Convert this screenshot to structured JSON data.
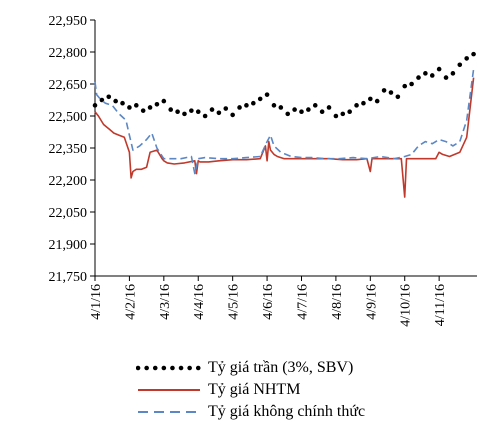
{
  "chart_data": {
    "type": "line",
    "y_ticks": [
      "22,950",
      "22,800",
      "22,650",
      "22,500",
      "22,350",
      "22,200",
      "22,050",
      "21,900",
      "21,750"
    ],
    "x_ticks": [
      "4/1/16",
      "4/2/16",
      "4/3/16",
      "4/4/16",
      "4/5/16",
      "4/6/16",
      "4/7/16",
      "4/8/16",
      "4/9/16",
      "4/10/16",
      "4/11/16"
    ],
    "ylim": [
      21750,
      22950
    ],
    "xlim": [
      0,
      11.1
    ],
    "legend_position": "bottom",
    "series": [
      {
        "name": "Tỷ giá trần (3%, SBV)",
        "style": "dotted",
        "color": "#000000",
        "x": [
          0,
          0.2,
          0.4,
          0.6,
          0.8,
          1.0,
          1.2,
          1.4,
          1.6,
          1.8,
          2.0,
          2.2,
          2.4,
          2.6,
          2.8,
          3.0,
          3.2,
          3.4,
          3.6,
          3.8,
          4.0,
          4.2,
          4.4,
          4.6,
          4.8,
          5.0,
          5.2,
          5.4,
          5.6,
          5.8,
          6.0,
          6.2,
          6.4,
          6.6,
          6.8,
          7.0,
          7.2,
          7.4,
          7.6,
          7.8,
          8.0,
          8.2,
          8.4,
          8.6,
          8.8,
          9.0,
          9.2,
          9.4,
          9.6,
          9.8,
          10.0,
          10.2,
          10.4,
          10.6,
          10.8,
          11.0
        ],
        "values": [
          22550,
          22575,
          22590,
          22570,
          22560,
          22540,
          22550,
          22525,
          22540,
          22555,
          22570,
          22530,
          22520,
          22510,
          22525,
          22520,
          22500,
          22530,
          22515,
          22535,
          22505,
          22540,
          22550,
          22560,
          22580,
          22600,
          22550,
          22540,
          22510,
          22530,
          22520,
          22530,
          22550,
          22520,
          22540,
          22500,
          22510,
          22520,
          22550,
          22560,
          22580,
          22570,
          22620,
          22610,
          22590,
          22640,
          22650,
          22680,
          22700,
          22690,
          22720,
          22680,
          22700,
          22740,
          22770,
          22790
        ]
      },
      {
        "name": "Tỷ giá NHTM",
        "style": "solid",
        "color": "#c0392b",
        "x": [
          0,
          0.1,
          0.25,
          0.4,
          0.55,
          0.7,
          0.85,
          1.0,
          1.05,
          1.1,
          1.2,
          1.35,
          1.5,
          1.6,
          1.8,
          1.95,
          2.0,
          2.1,
          2.3,
          2.6,
          2.9,
          2.95,
          3.0,
          3.05,
          3.3,
          3.6,
          4.0,
          4.4,
          4.8,
          4.95,
          5.0,
          5.05,
          5.1,
          5.2,
          5.3,
          5.5,
          5.8,
          6.1,
          6.4,
          6.8,
          7.2,
          7.6,
          7.9,
          8.0,
          8.05,
          8.2,
          8.6,
          8.9,
          9.0,
          9.05,
          9.1,
          9.5,
          9.9,
          10.0,
          10.1,
          10.3,
          10.6,
          10.8,
          11.0
        ],
        "values": [
          22520,
          22500,
          22460,
          22440,
          22420,
          22410,
          22400,
          22330,
          22210,
          22240,
          22250,
          22250,
          22260,
          22330,
          22340,
          22300,
          22290,
          22280,
          22275,
          22280,
          22290,
          22230,
          22290,
          22285,
          22285,
          22290,
          22295,
          22295,
          22300,
          22360,
          22290,
          22380,
          22340,
          22320,
          22310,
          22300,
          22300,
          22300,
          22300,
          22300,
          22295,
          22295,
          22300,
          22240,
          22300,
          22300,
          22300,
          22300,
          22120,
          22300,
          22300,
          22300,
          22300,
          22330,
          22320,
          22310,
          22330,
          22400,
          22680
        ]
      },
      {
        "name": "Tỷ giá không chính thức",
        "style": "dashed",
        "color": "#5b87c5",
        "x": [
          0,
          0.05,
          0.15,
          0.3,
          0.5,
          0.7,
          0.9,
          1.0,
          1.1,
          1.3,
          1.5,
          1.65,
          1.8,
          2.0,
          2.2,
          2.5,
          2.8,
          2.9,
          3.0,
          3.2,
          3.6,
          4.0,
          4.4,
          4.8,
          5.0,
          5.1,
          5.2,
          5.4,
          5.7,
          6.0,
          6.3,
          6.7,
          7.1,
          7.5,
          7.9,
          8.3,
          8.7,
          9.0,
          9.2,
          9.4,
          9.6,
          9.8,
          10.0,
          10.2,
          10.4,
          10.6,
          10.8,
          11.0
        ],
        "values": [
          22660,
          22600,
          22580,
          22560,
          22550,
          22510,
          22480,
          22410,
          22340,
          22360,
          22390,
          22420,
          22350,
          22300,
          22300,
          22300,
          22310,
          22230,
          22300,
          22305,
          22300,
          22300,
          22305,
          22310,
          22380,
          22410,
          22360,
          22330,
          22310,
          22305,
          22305,
          22300,
          22300,
          22305,
          22300,
          22310,
          22300,
          22310,
          22320,
          22360,
          22380,
          22370,
          22390,
          22380,
          22360,
          22380,
          22480,
          22720
        ]
      }
    ]
  }
}
